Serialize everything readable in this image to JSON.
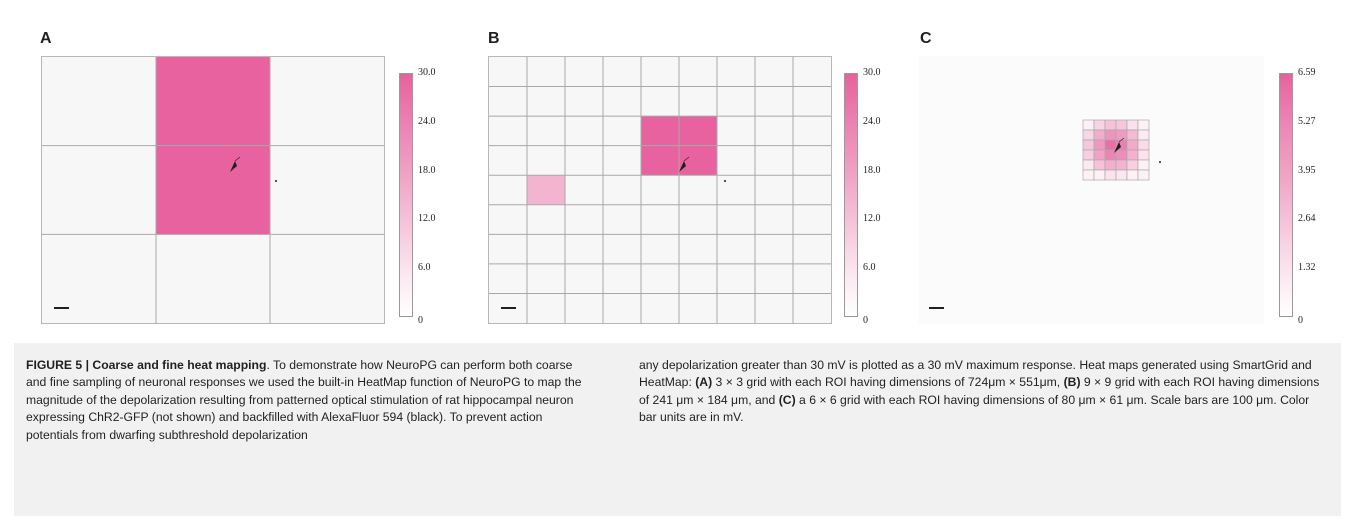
{
  "panels": [
    {
      "letter": "A",
      "grid": 3,
      "active_cells": [
        {
          "row": 0,
          "col": 1,
          "value": 30.0
        },
        {
          "row": 1,
          "col": 1,
          "value": 30.0
        }
      ],
      "colorbar_ticks": [
        "30.0",
        "24.0",
        "18.0",
        "12.0",
        "6.0",
        "0"
      ],
      "colorbar_max": 30.0
    },
    {
      "letter": "B",
      "grid": 9,
      "active_cells": [
        {
          "row": 2,
          "col": 4,
          "value": 30.0
        },
        {
          "row": 2,
          "col": 5,
          "value": 30.0
        },
        {
          "row": 3,
          "col": 4,
          "value": 30.0
        },
        {
          "row": 3,
          "col": 5,
          "value": 30.0
        },
        {
          "row": 4,
          "col": 1,
          "value": 12.0
        }
      ],
      "colorbar_ticks": [
        "30.0",
        "24.0",
        "18.0",
        "12.0",
        "6.0",
        "0"
      ],
      "colorbar_max": 30.0
    },
    {
      "letter": "C",
      "grid": 6,
      "colorbar_ticks": [
        "6.59",
        "5.27",
        "3.95",
        "2.64",
        "1.32",
        "0"
      ],
      "colorbar_max": 6.59
    }
  ],
  "colors": {
    "heat_max": "#e7629e",
    "heat_min": "#ffffff",
    "grid_line": "#a9a9a9",
    "neuron": "#231f20"
  },
  "caption": {
    "title": "FIGURE 5 | Coarse and fine heat mapping",
    "left_rest": ". To demonstrate how NeuroPG can perform both coarse and fine sampling of neuronal responses we used the built-in HeatMap function of NeuroPG to map the magnitude of the depolarization resulting from patterned optical stimulation of rat hippocampal neuron expressing ChR2-GFP (not shown) and backfilled with AlexaFluor 594 (black). To prevent action potentials from dwarfing subthreshold depolarization",
    "right_1": "any depolarization greater than 30 mV is plotted as a 30 mV maximum response. Heat maps generated using SmartGrid and HeatMap: ",
    "a_label": "(A)",
    "a_text": " 3 × 3 grid with each ROI having dimensions of 724μm × 551μm, ",
    "b_label": "(B)",
    "b_text": " 9 × 9 grid with each ROI having dimensions of 241 μm × 184 μm, and ",
    "c_label": "(C)",
    "c_text": " a 6 × 6 grid with each ROI having dimensions of 80 μm × 61 μm. Scale bars are 100 μm. Color bar units are in mV."
  }
}
